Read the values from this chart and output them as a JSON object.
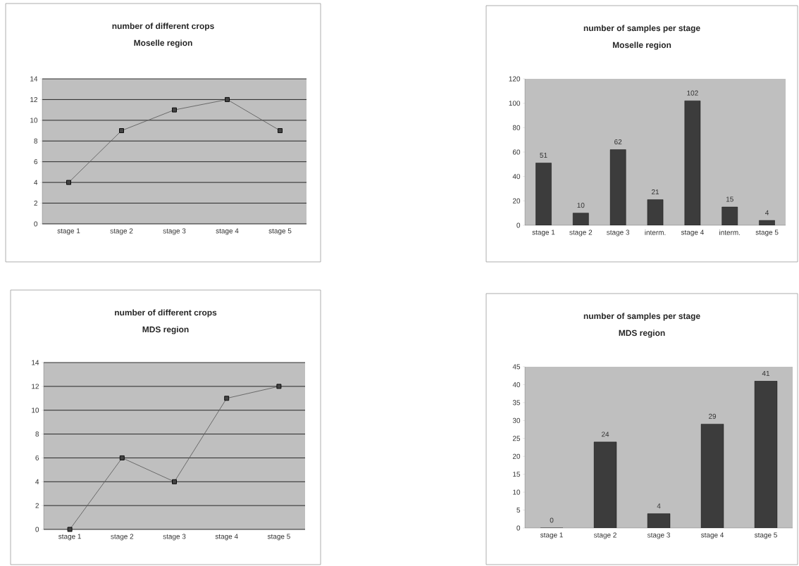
{
  "chart_data": [
    {
      "type": "line",
      "title": "number of different crops",
      "subtitle": "Moselle region",
      "categories": [
        "stage 1",
        "stage 2",
        "stage 3",
        "stage 4",
        "stage 5"
      ],
      "values": [
        4,
        9,
        11,
        12,
        9
      ],
      "color": "#606060",
      "ylim": [
        0,
        14
      ],
      "yticks": [
        0,
        2,
        4,
        6,
        8,
        10,
        12,
        14
      ],
      "grid": "y",
      "marker": "square"
    },
    {
      "type": "bar",
      "title": "number of samples per stage",
      "subtitle": "Moselle region",
      "categories": [
        "stage 1",
        "stage 2",
        "stage 3",
        "interm.",
        "stage 4",
        "interm.",
        "stage 5"
      ],
      "values": [
        51,
        10,
        62,
        21,
        102,
        15,
        4
      ],
      "color": "#3c3c3c",
      "ylim": [
        0,
        120
      ],
      "yticks": [
        0,
        20,
        40,
        60,
        80,
        100,
        120
      ],
      "data_labels": true
    },
    {
      "type": "line",
      "title": "number of different crops",
      "subtitle": "MDS region",
      "categories": [
        "stage 1",
        "stage 2",
        "stage 3",
        "stage 4",
        "stage 5"
      ],
      "values": [
        0,
        6,
        4,
        11,
        12
      ],
      "color": "#606060",
      "ylim": [
        0,
        14
      ],
      "yticks": [
        0,
        2,
        4,
        6,
        8,
        10,
        12,
        14
      ],
      "grid": "y",
      "marker": "square"
    },
    {
      "type": "bar",
      "title": "number of samples per stage",
      "subtitle": "MDS region",
      "categories": [
        "stage 1",
        "stage 2",
        "stage 3",
        "stage 4",
        "stage 5"
      ],
      "values": [
        0,
        24,
        4,
        29,
        41
      ],
      "color": "#3c3c3c",
      "ylim": [
        0,
        45
      ],
      "yticks": [
        0,
        5,
        10,
        15,
        20,
        25,
        30,
        35,
        40,
        45
      ],
      "data_labels": true
    }
  ]
}
